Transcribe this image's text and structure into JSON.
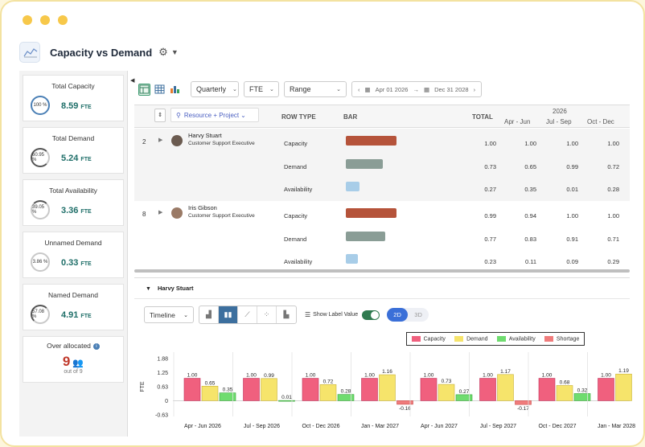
{
  "header": {
    "title": "Capacity vs Demand"
  },
  "kpis": [
    {
      "label": "Total Capacity",
      "pct": "100 %",
      "value": "8.59",
      "unit": "FTE"
    },
    {
      "label": "Total Demand",
      "pct": "60.95 %",
      "value": "5.24",
      "unit": "FTE"
    },
    {
      "label": "Total Availability",
      "pct": "39.05 %",
      "value": "3.36",
      "unit": "FTE"
    },
    {
      "label": "Unnamed Demand",
      "pct": "3.86 %",
      "value": "0.33",
      "unit": "FTE"
    },
    {
      "label": "Named Demand",
      "pct": "57.08 %",
      "value": "4.91",
      "unit": "FTE"
    }
  ],
  "over": {
    "label": "Over allocated",
    "count": "9",
    "of": "out of 9"
  },
  "toolbar": {
    "period": "Quarterly",
    "unit": "FTE",
    "range": "Range",
    "start": "Apr 01 2026",
    "end": "Dec 31 2028"
  },
  "grid": {
    "group_by": "Resource + Project",
    "col_rowtype": "ROW TYPE",
    "col_bar": "BAR",
    "col_total": "TOTAL",
    "year": "2026",
    "periods": [
      "Apr - Jun",
      "Jul - Sep",
      "Oct - Dec"
    ],
    "entries": [
      {
        "num": "2",
        "name": "Harvy Stuart",
        "role": "Customer Support Executive",
        "rows": [
          {
            "type": "Capacity",
            "total": "1.00",
            "vals": [
              "1.00",
              "1.00",
              "1.00"
            ]
          },
          {
            "type": "Demand",
            "total": "0.73",
            "vals": [
              "0.65",
              "0.99",
              "0.72"
            ]
          },
          {
            "type": "Availability",
            "total": "0.27",
            "vals": [
              "0.35",
              "0.01",
              "0.28"
            ]
          }
        ]
      },
      {
        "num": "8",
        "name": "Iris Gibson",
        "role": "Customer Support Executive",
        "rows": [
          {
            "type": "Capacity",
            "total": "0.99",
            "vals": [
              "0.94",
              "1.00",
              "1.00"
            ]
          },
          {
            "type": "Demand",
            "total": "0.77",
            "vals": [
              "0.83",
              "0.91",
              "0.71"
            ]
          },
          {
            "type": "Availability",
            "total": "0.23",
            "vals": [
              "0.11",
              "0.09",
              "0.29"
            ]
          }
        ]
      }
    ]
  },
  "detail": {
    "title": "Harvy Stuart",
    "view": "Timeline",
    "show_label": "Show Label Value",
    "d2": "2D",
    "d3": "3D"
  },
  "colors": {
    "capacity": "#f0607e",
    "demand": "#f6e46b",
    "availability": "#6fdc6f",
    "shortage": "#f07c7c"
  },
  "chart_data": {
    "type": "bar",
    "ylabel": "FTE",
    "ylim": [
      -0.63,
      1.88
    ],
    "yticks": [
      "1.88",
      "1.25",
      "0.63",
      "0",
      "-0.63"
    ],
    "legend": [
      "Capacity",
      "Demand",
      "Availability",
      "Shortage"
    ],
    "categories": [
      "Apr - Jun 2026",
      "Jul - Sep 2026",
      "Oct - Dec 2026",
      "Jan - Mar 2027",
      "Apr - Jun 2027",
      "Jul - Sep 2027",
      "Oct - Dec 2027",
      "Jan - Mar 2028"
    ],
    "series": [
      {
        "name": "Capacity",
        "values": [
          1.0,
          1.0,
          1.0,
          1.0,
          1.0,
          1.0,
          1.0,
          1.0
        ],
        "labels": [
          "1.00",
          "1.00",
          "1.00",
          "1.00",
          "1.00",
          "1.00",
          "1.00",
          "1.00"
        ]
      },
      {
        "name": "Demand",
        "values": [
          0.65,
          0.99,
          0.72,
          1.16,
          0.73,
          1.17,
          0.68,
          1.19
        ],
        "labels": [
          "0.65",
          "0.99",
          "0.72",
          "1.16",
          "0.73",
          "1.17",
          "0.68",
          "1.19"
        ]
      },
      {
        "name": "Availability",
        "values": [
          0.35,
          0.01,
          0.28,
          null,
          0.27,
          null,
          0.32,
          null
        ],
        "labels": [
          "0.35",
          "0.01",
          "0.28",
          "",
          "0.27",
          "",
          "0.32",
          ""
        ]
      },
      {
        "name": "Shortage",
        "values": [
          null,
          null,
          null,
          -0.16,
          null,
          -0.17,
          null,
          null
        ],
        "labels": [
          "",
          "",
          "",
          "-0.16",
          "",
          "-0.17",
          "",
          ""
        ]
      }
    ]
  }
}
